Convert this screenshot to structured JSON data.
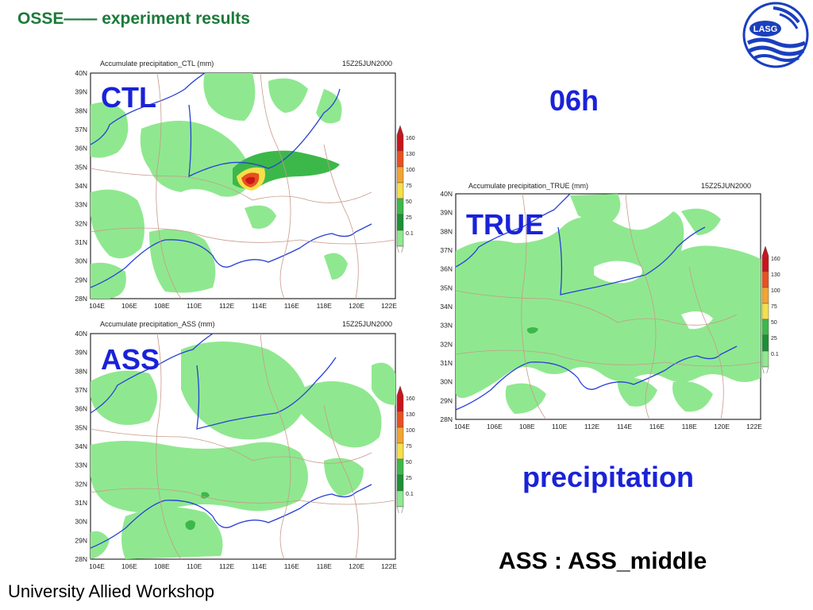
{
  "slide": {
    "title": "OSSE—— experiment results",
    "footer": "University Allied Workshop",
    "label_06h": "06h",
    "label_precipitation": "precipitation",
    "note": "ASS : ASS_middle",
    "logo_text": "LASG"
  },
  "colors": {
    "title": "#1d7a3a",
    "labels": "#1a22d8",
    "rain_light": "#8fe88f",
    "rain_medium": "#3cb84a",
    "rain_heavy": "#1d8f35",
    "rain_75": "#f4e04a",
    "rain_100": "#f4a430",
    "rain_130": "#e8501f",
    "rain_160": "#c8141a",
    "river": "#2840d8",
    "province": "#c89a8a"
  },
  "colorbar": [
    "160",
    "130",
    "100",
    "75",
    "50",
    "25",
    "0.1"
  ],
  "lat_labels": [
    "40N",
    "39N",
    "38N",
    "37N",
    "36N",
    "35N",
    "34N",
    "33N",
    "32N",
    "31N",
    "30N",
    "29N",
    "28N"
  ],
  "lon_labels": [
    "104E",
    "106E",
    "108E",
    "110E",
    "112E",
    "114E",
    "116E",
    "118E",
    "120E",
    "122E"
  ],
  "maps": [
    {
      "id": "ctl",
      "label": "CTL",
      "header_left": "Accumulate precipitation_CTL (mm)",
      "header_right": "15Z25JUN2000"
    },
    {
      "id": "ass",
      "label": "ASS",
      "header_left": "Accumulate precipitation_ASS (mm)",
      "header_right": "15Z25JUN2000"
    },
    {
      "id": "true",
      "label": "TRUE",
      "header_left": "Accumulate precipitation_TRUE (mm)",
      "header_right": "15Z25JUN2000"
    }
  ]
}
